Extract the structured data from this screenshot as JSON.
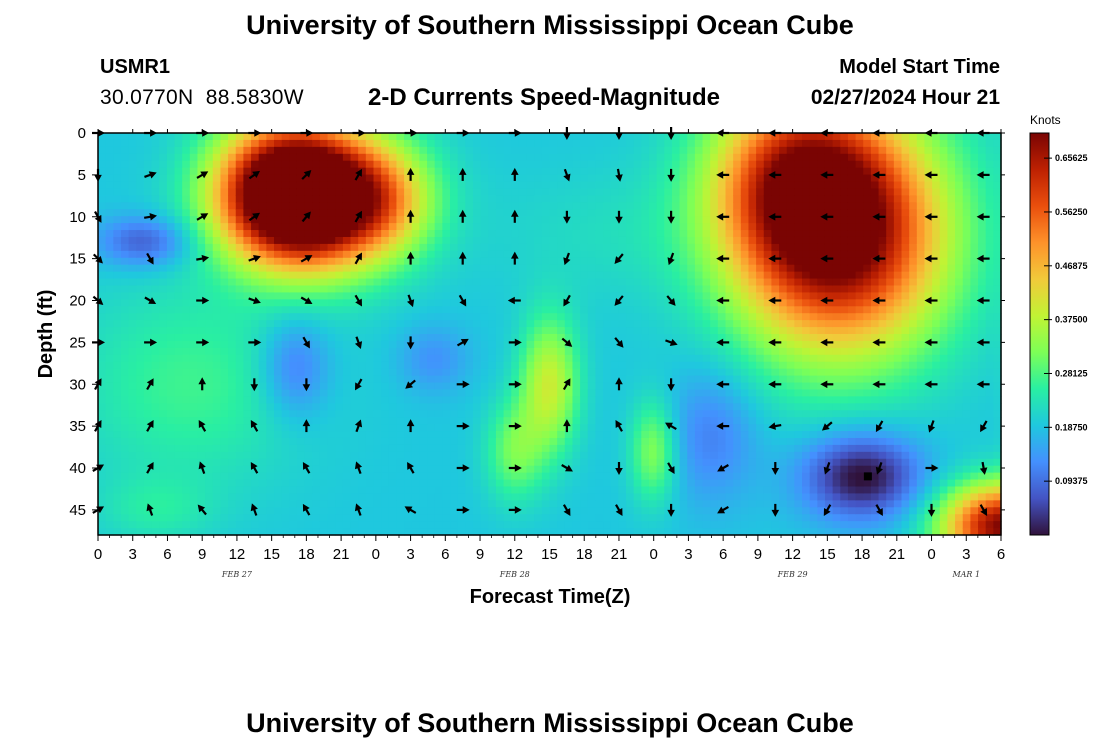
{
  "header": {
    "title": "University of Southern Mississippi Ocean Cube",
    "station_id": "USMR1",
    "coordinates": "30.0770N  88.5830W",
    "subtitle": "2-D Currents Speed-Magnitude",
    "start_label": "Model Start Time",
    "start_value": "02/27/2024 Hour 21"
  },
  "footer": {
    "title": "University of Southern Mississippi Ocean Cube"
  },
  "colors": {
    "scale": [
      "#30123b",
      "#4454c4",
      "#4490fe",
      "#1fc8de",
      "#29efa2",
      "#7dff56",
      "#c1f334",
      "#f1ca3a",
      "#fe922a",
      "#ea4f0d",
      "#be2102",
      "#7a0403"
    ],
    "vector": "#000000",
    "axis": "#000000"
  },
  "chart_data": {
    "type": "heatmap",
    "title": "2-D Currents Speed-Magnitude",
    "xlabel": "Forecast Time(Z)",
    "ylabel": "Depth (ft)",
    "xlim": [
      0,
      78
    ],
    "ylim": [
      0,
      48
    ],
    "y_inverted": true,
    "x_ticks": [
      {
        "x": 0,
        "label": "0"
      },
      {
        "x": 3,
        "label": "3"
      },
      {
        "x": 6,
        "label": "6"
      },
      {
        "x": 9,
        "label": "9"
      },
      {
        "x": 12,
        "label": "12"
      },
      {
        "x": 15,
        "label": "15"
      },
      {
        "x": 18,
        "label": "18"
      },
      {
        "x": 21,
        "label": "21"
      },
      {
        "x": 24,
        "label": "0"
      },
      {
        "x": 27,
        "label": "3"
      },
      {
        "x": 30,
        "label": "6"
      },
      {
        "x": 33,
        "label": "9"
      },
      {
        "x": 36,
        "label": "12"
      },
      {
        "x": 39,
        "label": "15"
      },
      {
        "x": 42,
        "label": "18"
      },
      {
        "x": 45,
        "label": "21"
      },
      {
        "x": 48,
        "label": "0"
      },
      {
        "x": 51,
        "label": "3"
      },
      {
        "x": 54,
        "label": "6"
      },
      {
        "x": 57,
        "label": "9"
      },
      {
        "x": 60,
        "label": "12"
      },
      {
        "x": 63,
        "label": "15"
      },
      {
        "x": 66,
        "label": "18"
      },
      {
        "x": 69,
        "label": "21"
      },
      {
        "x": 72,
        "label": "0"
      },
      {
        "x": 75,
        "label": "3"
      },
      {
        "x": 78,
        "label": "6"
      }
    ],
    "y_ticks": [
      0,
      5,
      10,
      15,
      20,
      25,
      30,
      35,
      40,
      45
    ],
    "date_labels": [
      {
        "x": 12,
        "label": "FEB 27"
      },
      {
        "x": 36,
        "label": "FEB 28"
      },
      {
        "x": 60,
        "label": "FEB 29"
      },
      {
        "x": 75,
        "label": "MAR 1"
      }
    ],
    "colorbar": {
      "title": "Knots",
      "range": [
        0.0,
        0.7
      ],
      "ticks": [
        {
          "value": 0.09375,
          "label": "0.09375"
        },
        {
          "value": 0.1875,
          "label": "0.18750"
        },
        {
          "value": 0.28125,
          "label": "0.28125"
        },
        {
          "value": 0.375,
          "label": "0.37500"
        },
        {
          "value": 0.46875,
          "label": "0.46875"
        },
        {
          "value": 0.5625,
          "label": "0.56250"
        },
        {
          "value": 0.65625,
          "label": "0.65625"
        }
      ]
    },
    "speed_hotspots": [
      {
        "x": 16,
        "y": 7,
        "sx": 6,
        "sy": 8,
        "v": 0.5
      },
      {
        "x": 20,
        "y": 8,
        "sx": 7,
        "sy": 8,
        "v": 0.45
      },
      {
        "x": 64,
        "y": 12,
        "sx": 9,
        "sy": 14,
        "v": 0.55
      },
      {
        "x": 60,
        "y": 5,
        "sx": 7,
        "sy": 10,
        "v": 0.25
      },
      {
        "x": 39,
        "y": 30,
        "sx": 2.5,
        "sy": 8,
        "v": 0.2
      },
      {
        "x": 36,
        "y": 38,
        "sx": 2.5,
        "sy": 6,
        "v": 0.12
      },
      {
        "x": 48,
        "y": 38,
        "sx": 2,
        "sy": 6,
        "v": 0.14
      },
      {
        "x": 8,
        "y": 30,
        "sx": 10,
        "sy": 12,
        "v": 0.08
      },
      {
        "x": 78,
        "y": 47,
        "sx": 5,
        "sy": 5,
        "v": 0.5
      },
      {
        "x": 80,
        "y": 20,
        "sx": 1.2,
        "sy": 40,
        "v": 0.3
      },
      {
        "x": 25,
        "y": 8,
        "sx": 4,
        "sy": 6,
        "v": 0.1
      },
      {
        "x": 4,
        "y": 13,
        "sx": 4,
        "sy": 3,
        "v": -0.12
      },
      {
        "x": 17,
        "y": 28,
        "sx": 3,
        "sy": 6,
        "v": -0.1
      },
      {
        "x": 29,
        "y": 27,
        "sx": 3,
        "sy": 4,
        "v": -0.06
      },
      {
        "x": 66,
        "y": 41,
        "sx": 5,
        "sy": 5,
        "v": -0.2
      },
      {
        "x": 53,
        "y": 36,
        "sx": 4,
        "sy": 8,
        "v": -0.08
      },
      {
        "x": 44,
        "y": 12,
        "sx": 10,
        "sy": 8,
        "v": 0.03
      },
      {
        "x": 5,
        "y": 45,
        "sx": 5,
        "sy": 4,
        "v": 0.05
      }
    ],
    "speed_base": 0.19,
    "arrow_rows_depth": [
      0,
      5,
      10,
      15,
      20,
      25,
      30,
      35,
      40,
      45
    ],
    "arrow_cols_hours": [
      0,
      4.5,
      9,
      13.5,
      18,
      22.5,
      27,
      31.5,
      36,
      40.5,
      45,
      49.5,
      54,
      58.5,
      63,
      67.5,
      72,
      76.5
    ],
    "arrow_directions_deg": [
      [
        90,
        90,
        90,
        90,
        90,
        90,
        90,
        90,
        90,
        180,
        180,
        180,
        270,
        270,
        270,
        270,
        270,
        270
      ],
      [
        180,
        70,
        60,
        55,
        45,
        30,
        0,
        0,
        0,
        160,
        170,
        180,
        270,
        270,
        270,
        270,
        270,
        270
      ],
      [
        150,
        80,
        60,
        55,
        40,
        30,
        0,
        0,
        0,
        180,
        180,
        180,
        270,
        270,
        270,
        270,
        270,
        270
      ],
      [
        135,
        150,
        80,
        70,
        60,
        30,
        0,
        0,
        0,
        200,
        220,
        200,
        270,
        270,
        270,
        270,
        270,
        270
      ],
      [
        130,
        120,
        90,
        110,
        120,
        150,
        160,
        150,
        270,
        210,
        220,
        140,
        270,
        270,
        270,
        270,
        270,
        270
      ],
      [
        90,
        90,
        90,
        90,
        150,
        160,
        180,
        60,
        90,
        130,
        140,
        110,
        270,
        270,
        270,
        270,
        270,
        270
      ],
      [
        30,
        30,
        0,
        180,
        180,
        210,
        230,
        90,
        90,
        30,
        0,
        180,
        270,
        270,
        270,
        270,
        270,
        270
      ],
      [
        30,
        30,
        330,
        330,
        0,
        20,
        0,
        90,
        90,
        0,
        330,
        300,
        270,
        260,
        230,
        210,
        200,
        210
      ],
      [
        60,
        30,
        340,
        330,
        330,
        340,
        330,
        90,
        90,
        120,
        180,
        150,
        240,
        180,
        200,
        200,
        90,
        170
      ],
      [
        60,
        340,
        320,
        340,
        330,
        340,
        300,
        90,
        90,
        150,
        150,
        180,
        240,
        180,
        210,
        150,
        180,
        150
      ]
    ],
    "speed_markers": [
      {
        "x": 66.5,
        "y": 41,
        "label": "min"
      }
    ]
  }
}
